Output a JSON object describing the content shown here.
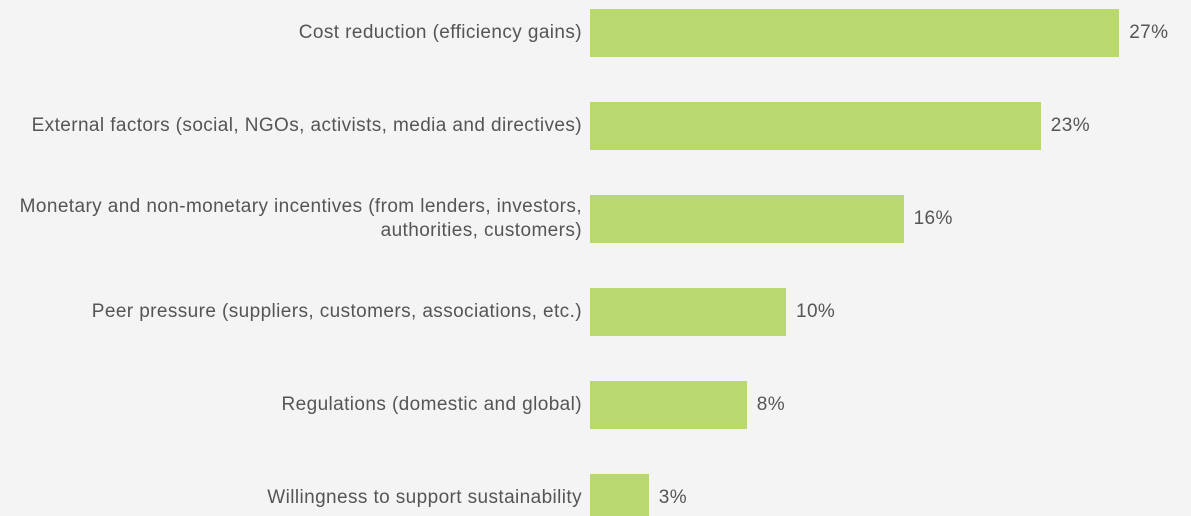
{
  "chart_data": {
    "type": "bar",
    "orientation": "horizontal",
    "categories": [
      "Cost reduction (efficiency gains)",
      "External factors (social, NGOs, activists, media and directives)",
      "Monetary and non-monetary incentives (from lenders, investors, authorities, customers)",
      "Peer pressure (suppliers, customers, associations, etc.)",
      "Regulations (domestic and global)",
      "Willingness to support sustainability"
    ],
    "values": [
      27,
      23,
      16,
      10,
      8,
      3
    ],
    "value_labels": [
      "27%",
      "23%",
      "16%",
      "10%",
      "8%",
      "3%"
    ],
    "color": "#b9d96e"
  }
}
